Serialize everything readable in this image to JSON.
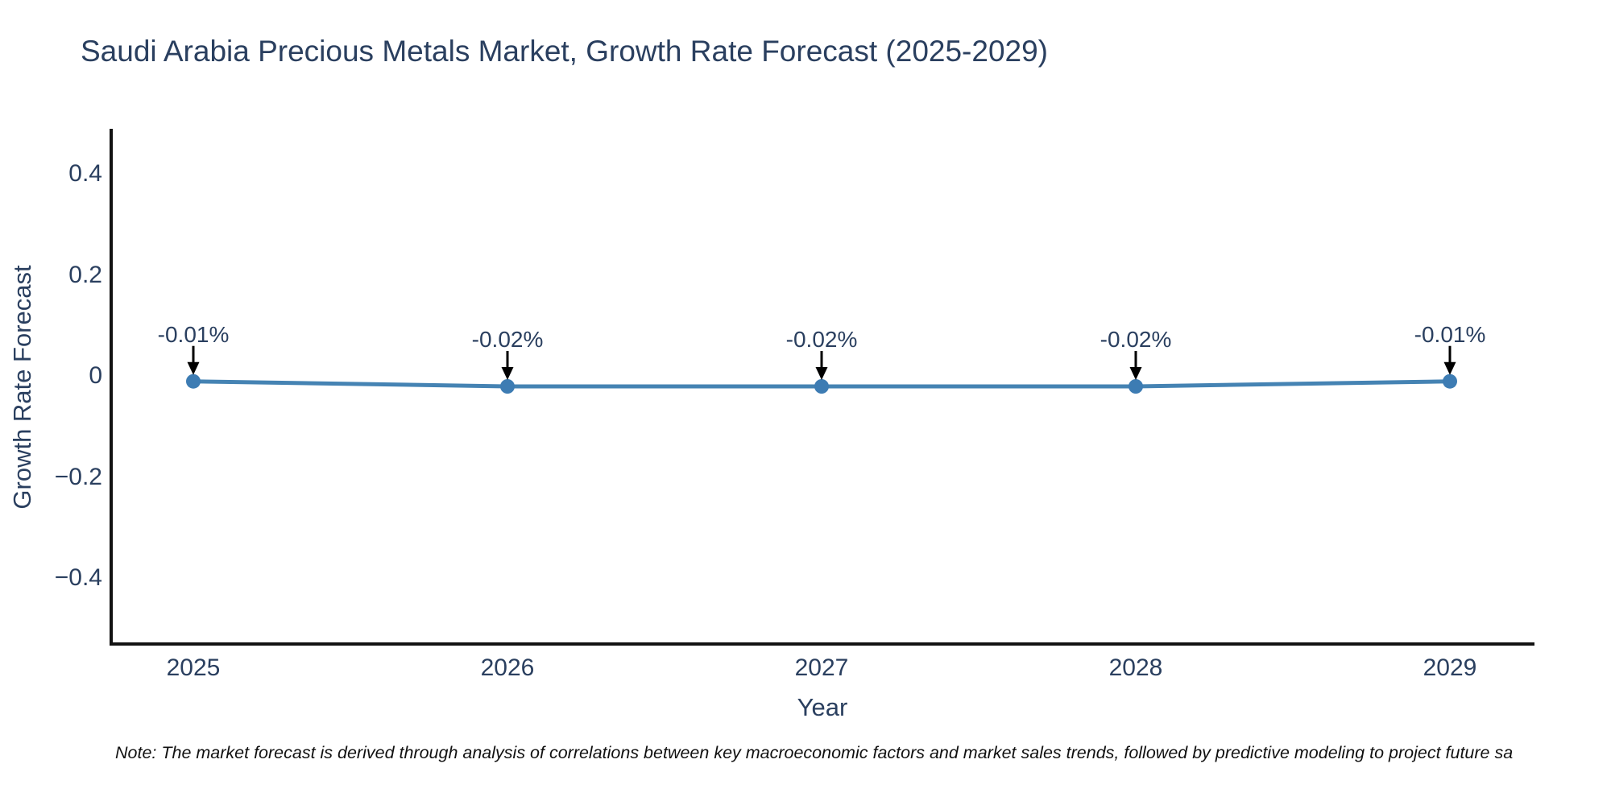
{
  "title": "Saudi Arabia Precious Metals Market, Growth Rate Forecast (2025-2029)",
  "note": "Note: The market forecast is derived through analysis of correlations between key macroeconomic factors and market sales trends, followed by predictive modeling to project future sa",
  "chart_data": {
    "type": "line",
    "title": "Saudi Arabia Precious Metals Market, Growth Rate Forecast (2025-2029)",
    "xlabel": "Year",
    "ylabel": "Growth Rate Forecast",
    "categories": [
      "2025",
      "2026",
      "2027",
      "2028",
      "2029"
    ],
    "series": [
      {
        "name": "Growth Rate Forecast",
        "values": [
          -0.01,
          -0.02,
          -0.02,
          -0.02,
          -0.01
        ],
        "point_labels": [
          "-0.01%",
          "-0.02%",
          "-0.02%",
          "-0.02%",
          "-0.01%"
        ]
      }
    ],
    "y_ticks": {
      "labels": [
        "0.4",
        "0.2",
        "0",
        "−0.2",
        "−0.4"
      ],
      "values": [
        0.4,
        0.2,
        0,
        -0.2,
        -0.4
      ]
    },
    "ylim": [
      -0.53,
      0.49
    ],
    "grid": false,
    "legend": "none",
    "colors": {
      "line": "#4583b3",
      "marker": "#3d7cb3",
      "arrow": "#000000",
      "axis": "#131313",
      "text": "#2a3f5f",
      "note_text": "#111111",
      "background": "#ffffff"
    }
  }
}
